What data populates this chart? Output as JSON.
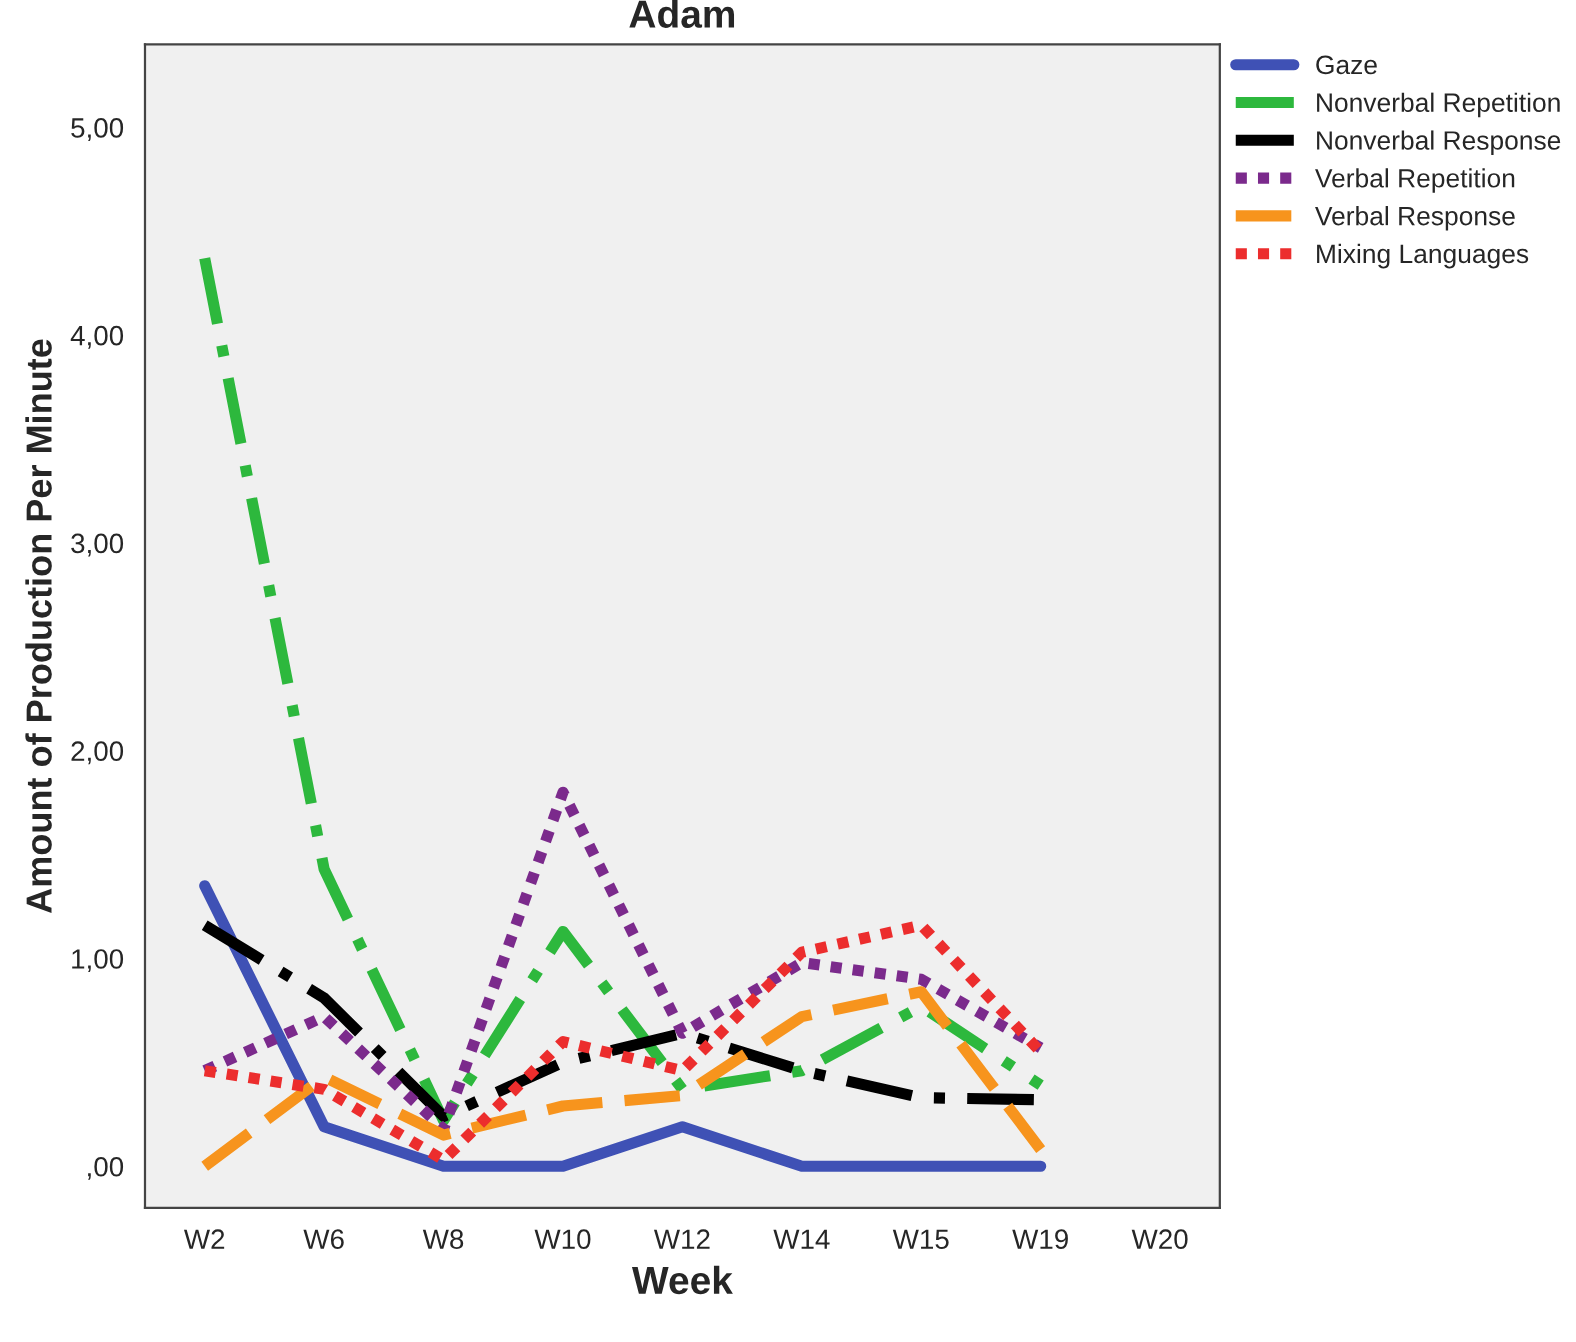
{
  "chart_data": {
    "type": "line",
    "title": "Adam",
    "xlabel": "Week",
    "ylabel": "Amount of Production Per Minute",
    "categories": [
      "W2",
      "W6",
      "W8",
      "W10",
      "W12",
      "W14",
      "W15",
      "W19",
      "W20"
    ],
    "series": [
      {
        "name": "Gaze",
        "color": "#3f51b5",
        "line_style": "solid",
        "values": [
          1.35,
          0.19,
          0,
          0,
          0.19,
          0,
          0,
          0,
          null
        ]
      },
      {
        "name": "Nonverbal Repetition",
        "color": "#2db83d",
        "line_style": "dashdot",
        "values": [
          4.37,
          1.43,
          0.22,
          1.13,
          0.37,
          0.46,
          0.77,
          0.39,
          null
        ]
      },
      {
        "name": "Nonverbal Response",
        "color": "#000000",
        "line_style": "dashdot",
        "values": [
          1.16,
          0.81,
          0.24,
          0.5,
          0.64,
          0.46,
          0.33,
          0.32,
          null
        ]
      },
      {
        "name": "Verbal Repetition",
        "color": "#7b2a8c",
        "line_style": "dotted",
        "values": [
          0.46,
          0.72,
          0.18,
          1.8,
          0.64,
          0.98,
          0.9,
          0.57,
          null
        ]
      },
      {
        "name": "Verbal Response",
        "color": "#f7941d",
        "line_style": "dashed",
        "values": [
          0,
          0.43,
          0.15,
          0.29,
          0.34,
          0.72,
          0.84,
          0.08,
          null
        ]
      },
      {
        "name": "Mixing Languages",
        "color": "#ec2d2d",
        "line_style": "dotted",
        "values": [
          0.46,
          0.37,
          0.03,
          0.6,
          0.46,
          1.03,
          1.16,
          0.55,
          null
        ]
      }
    ],
    "ylim": [
      -0.2,
      5.4
    ],
    "yticks": [
      {
        "value": 0,
        "label": ",00"
      },
      {
        "value": 1,
        "label": "1,00"
      },
      {
        "value": 2,
        "label": "2,00"
      },
      {
        "value": 3,
        "label": "3,00"
      },
      {
        "value": 4,
        "label": "4,00"
      },
      {
        "value": 5,
        "label": "5,00"
      }
    ],
    "grid": false,
    "legend": "top right",
    "marker": "none"
  }
}
